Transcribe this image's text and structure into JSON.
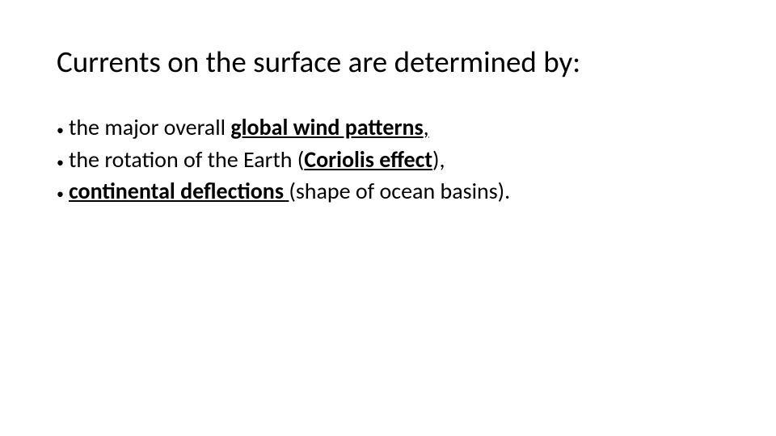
{
  "background_color": "#ffffff",
  "text_color": "#000000",
  "title": {
    "text": "Currents on the surface are determined by:",
    "fontsize": 37,
    "fontweight": 400
  },
  "bullets": {
    "fontsize": 28,
    "dot": "•",
    "items": [
      {
        "pre": "the major overall ",
        "emph": "global wind patterns",
        "post": ", ",
        "emph_bold": true,
        "emph_underline": true,
        "post_underline_trail": ""
      },
      {
        "pre": "the rotation of the Earth (",
        "emph": "Coriolis effect",
        "post": "), ",
        "emph_bold": true,
        "emph_underline": true
      },
      {
        "pre": "",
        "emph": "continental deflections ",
        "post": "(shape of ocean basins).",
        "emph_bold": true,
        "emph_underline": true
      }
    ]
  }
}
